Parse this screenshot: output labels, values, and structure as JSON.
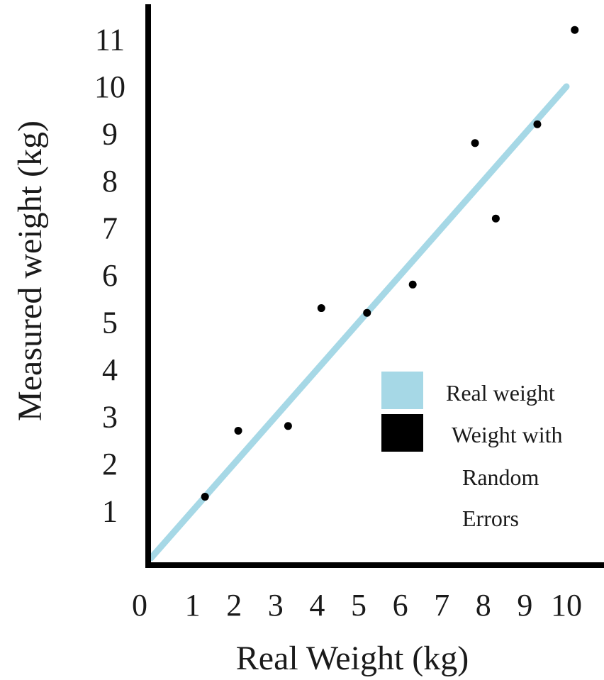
{
  "chart_data": {
    "type": "scatter",
    "xlabel": "Real Weight (kg)",
    "ylabel": "Measured weight (kg)",
    "origin_label": "0",
    "xlim": [
      0,
      10.4
    ],
    "ylim": [
      0,
      11.4
    ],
    "x_ticks": [
      "1",
      "2",
      "3",
      "4",
      "5",
      "6",
      "7",
      "8",
      "9",
      "10"
    ],
    "y_ticks": [
      "1",
      "2",
      "3",
      "4",
      "5",
      "6",
      "7",
      "8",
      "9",
      "10",
      "11"
    ],
    "grid": false,
    "legend_position": "bottom-right",
    "series": [
      {
        "name": "Real weight",
        "kind": "line",
        "color": "#a6d8e6",
        "x": [
          0,
          10
        ],
        "y": [
          0,
          10
        ]
      },
      {
        "name": "Weight with Random Errors",
        "kind": "scatter",
        "color": "#000000",
        "x": [
          1.3,
          2.1,
          3.3,
          4.1,
          5.2,
          6.3,
          7.8,
          8.3,
          9.3,
          10.2
        ],
        "y": [
          1.3,
          2.7,
          2.8,
          5.3,
          5.2,
          5.8,
          8.8,
          7.2,
          9.2,
          11.2
        ]
      }
    ],
    "legend": [
      {
        "label_lines": [
          "Real weight"
        ],
        "color": "#a6d8e6"
      },
      {
        "label_lines": [
          "Weight with",
          "Random",
          "Errors"
        ],
        "color": "#000000"
      }
    ]
  }
}
